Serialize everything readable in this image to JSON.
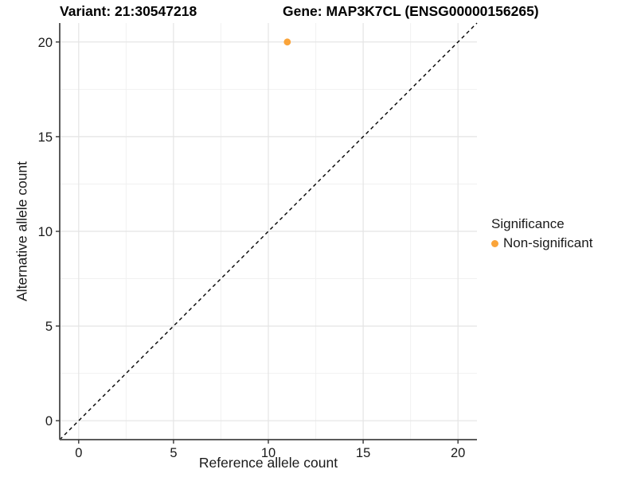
{
  "header": {
    "variant_title": "Variant: 21:30547218",
    "gene_title": "Gene: MAP3K7CL (ENSG00000156265)"
  },
  "chart_data": {
    "type": "scatter",
    "xlabel": "Reference allele count",
    "ylabel": "Alternative allele count",
    "xlim": [
      -1,
      21
    ],
    "ylim": [
      -1,
      21
    ],
    "xticks": [
      0,
      5,
      10,
      15,
      20
    ],
    "yticks": [
      0,
      5,
      10,
      15,
      20
    ],
    "minor_xticks": [
      2.5,
      7.5,
      12.5,
      17.5
    ],
    "minor_yticks": [
      2.5,
      7.5,
      12.5,
      17.5
    ],
    "grid": true,
    "points": [
      {
        "x": 11,
        "y": 20,
        "significance": "Non-significant"
      }
    ],
    "identity_line": {
      "style": "dashed",
      "from": [
        -1,
        -1
      ],
      "to": [
        21,
        21
      ],
      "color": "#000000"
    },
    "legend": {
      "title": "Significance",
      "position": "right",
      "items": [
        {
          "label": "Non-significant",
          "color": "#FAA43A"
        }
      ]
    },
    "colors": {
      "point": "#FAA43A",
      "grid_major": "#E4E4E4",
      "grid_minor": "#F1F1F1",
      "axis_line": "#5B5B5B",
      "tick_mark": "#333333",
      "tick_text": "#1A1A1A"
    }
  }
}
